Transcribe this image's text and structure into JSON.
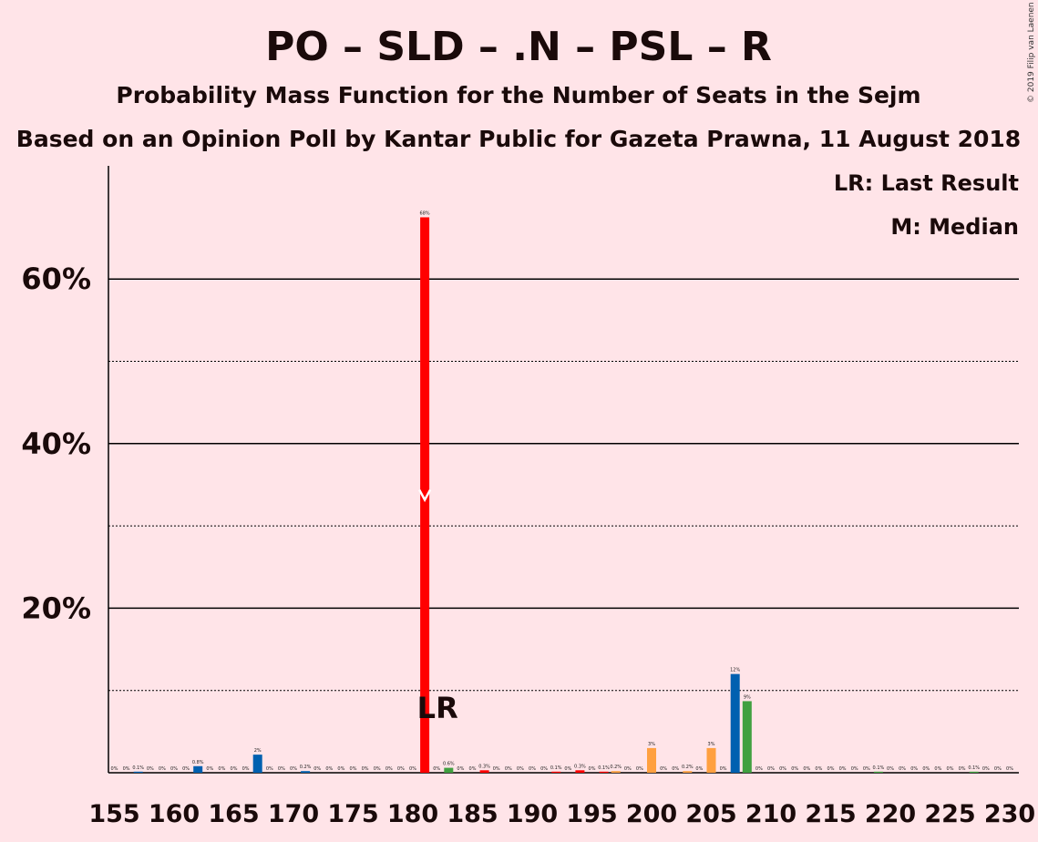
{
  "chart_data": {
    "type": "bar",
    "title": "PO – SLD – .N – PSL – R",
    "subtitle": "Probability Mass Function for the Number of Seats in the Sejm",
    "subtitle2": "Based on an Opinion Poll by Kantar Public for Gazeta Prawna, 11 August 2018",
    "copyright": "© 2019 Filip van Laenen",
    "legend": {
      "lr": "LR: Last Result",
      "m": "M: Median",
      "placement": "top-right"
    },
    "xlim": [
      155,
      230
    ],
    "ylim": [
      0,
      73
    ],
    "yticks": [
      {
        "v": 20,
        "label": "20%"
      },
      {
        "v": 40,
        "label": "40%"
      },
      {
        "v": 60,
        "label": "60%"
      }
    ],
    "ygrid_dotted": [
      10,
      30,
      50
    ],
    "xticks": [
      155,
      160,
      165,
      170,
      175,
      180,
      185,
      190,
      195,
      200,
      205,
      210,
      215,
      220,
      225,
      230
    ],
    "median_seat": 181,
    "median_marker_value": 33.5,
    "last_result_seat": 182,
    "last_result_label": "LR",
    "colors": {
      "background": "#ffe4e8",
      "red": "#ff0000",
      "blue": "#0060b0",
      "green": "#40a040",
      "orange": "#ffa040",
      "text": "#1a0a0a"
    },
    "bars": [
      {
        "seat": 155,
        "value": 0,
        "label": "0%",
        "color": "blue"
      },
      {
        "seat": 156,
        "value": 0,
        "label": "0%",
        "color": "blue"
      },
      {
        "seat": 157,
        "value": 0.1,
        "label": "0.1%",
        "color": "blue"
      },
      {
        "seat": 158,
        "value": 0,
        "label": "0%",
        "color": "blue"
      },
      {
        "seat": 159,
        "value": 0,
        "label": "0%",
        "color": "blue"
      },
      {
        "seat": 160,
        "value": 0,
        "label": "0%",
        "color": "blue"
      },
      {
        "seat": 161,
        "value": 0,
        "label": "0%",
        "color": "blue"
      },
      {
        "seat": 162,
        "value": 0.8,
        "label": "0.8%",
        "color": "blue"
      },
      {
        "seat": 163,
        "value": 0,
        "label": "0%",
        "color": "blue"
      },
      {
        "seat": 164,
        "value": 0,
        "label": "0%",
        "color": "blue"
      },
      {
        "seat": 165,
        "value": 0,
        "label": "0%",
        "color": "blue"
      },
      {
        "seat": 166,
        "value": 0,
        "label": "0%",
        "color": "blue"
      },
      {
        "seat": 167,
        "value": 2.2,
        "label": "2%",
        "color": "blue"
      },
      {
        "seat": 168,
        "value": 0,
        "label": "0%",
        "color": "blue"
      },
      {
        "seat": 169,
        "value": 0,
        "label": "0%",
        "color": "blue"
      },
      {
        "seat": 170,
        "value": 0,
        "label": "0%",
        "color": "blue"
      },
      {
        "seat": 171,
        "value": 0.2,
        "label": "0.2%",
        "color": "blue"
      },
      {
        "seat": 172,
        "value": 0,
        "label": "0%",
        "color": "blue"
      },
      {
        "seat": 173,
        "value": 0,
        "label": "0%",
        "color": "blue"
      },
      {
        "seat": 174,
        "value": 0,
        "label": "0%",
        "color": "blue"
      },
      {
        "seat": 175,
        "value": 0,
        "label": "0%",
        "color": "blue"
      },
      {
        "seat": 176,
        "value": 0,
        "label": "0%",
        "color": "blue"
      },
      {
        "seat": 177,
        "value": 0,
        "label": "0%",
        "color": "blue"
      },
      {
        "seat": 178,
        "value": 0,
        "label": "0%",
        "color": "blue"
      },
      {
        "seat": 179,
        "value": 0,
        "label": "0%",
        "color": "blue"
      },
      {
        "seat": 180,
        "value": 0,
        "label": "0%",
        "color": "blue"
      },
      {
        "seat": 181,
        "value": 67.5,
        "label": "68%",
        "color": "red"
      },
      {
        "seat": 182,
        "value": 0,
        "label": "0%",
        "color": "green"
      },
      {
        "seat": 183,
        "value": 0.6,
        "label": "0.6%",
        "color": "green"
      },
      {
        "seat": 184,
        "value": 0,
        "label": "0%",
        "color": "green"
      },
      {
        "seat": 185,
        "value": 0,
        "label": "0%",
        "color": "green"
      },
      {
        "seat": 186,
        "value": 0.3,
        "label": "0.3%",
        "color": "red"
      },
      {
        "seat": 187,
        "value": 0,
        "label": "0%",
        "color": "red"
      },
      {
        "seat": 188,
        "value": 0,
        "label": "0%",
        "color": "red"
      },
      {
        "seat": 189,
        "value": 0,
        "label": "0%",
        "color": "red"
      },
      {
        "seat": 190,
        "value": 0,
        "label": "0%",
        "color": "red"
      },
      {
        "seat": 191,
        "value": 0,
        "label": "0%",
        "color": "red"
      },
      {
        "seat": 192,
        "value": 0.1,
        "label": "0.1%",
        "color": "red"
      },
      {
        "seat": 193,
        "value": 0,
        "label": "0%",
        "color": "red"
      },
      {
        "seat": 194,
        "value": 0.3,
        "label": "0.3%",
        "color": "red"
      },
      {
        "seat": 195,
        "value": 0,
        "label": "0%",
        "color": "red"
      },
      {
        "seat": 196,
        "value": 0.1,
        "label": "0.1%",
        "color": "red"
      },
      {
        "seat": 197,
        "value": 0.2,
        "label": "0.2%",
        "color": "orange"
      },
      {
        "seat": 198,
        "value": 0,
        "label": "0%",
        "color": "orange"
      },
      {
        "seat": 199,
        "value": 0,
        "label": "0%",
        "color": "orange"
      },
      {
        "seat": 200,
        "value": 3.0,
        "label": "3%",
        "color": "orange"
      },
      {
        "seat": 201,
        "value": 0,
        "label": "0%",
        "color": "orange"
      },
      {
        "seat": 202,
        "value": 0,
        "label": "0%",
        "color": "orange"
      },
      {
        "seat": 203,
        "value": 0.2,
        "label": "0.2%",
        "color": "orange"
      },
      {
        "seat": 204,
        "value": 0,
        "label": "0%",
        "color": "orange"
      },
      {
        "seat": 205,
        "value": 3.0,
        "label": "3%",
        "color": "orange"
      },
      {
        "seat": 206,
        "value": 0,
        "label": "0%",
        "color": "blue"
      },
      {
        "seat": 207,
        "value": 12.0,
        "label": "12%",
        "color": "blue"
      },
      {
        "seat": 208,
        "value": 8.7,
        "label": "9%",
        "color": "green"
      },
      {
        "seat": 209,
        "value": 0,
        "label": "0%",
        "color": "green"
      },
      {
        "seat": 210,
        "value": 0,
        "label": "0%",
        "color": "green"
      },
      {
        "seat": 211,
        "value": 0,
        "label": "0%",
        "color": "green"
      },
      {
        "seat": 212,
        "value": 0,
        "label": "0%",
        "color": "green"
      },
      {
        "seat": 213,
        "value": 0,
        "label": "0%",
        "color": "green"
      },
      {
        "seat": 214,
        "value": 0,
        "label": "0%",
        "color": "green"
      },
      {
        "seat": 215,
        "value": 0,
        "label": "0%",
        "color": "green"
      },
      {
        "seat": 216,
        "value": 0,
        "label": "0%",
        "color": "green"
      },
      {
        "seat": 217,
        "value": 0,
        "label": "0%",
        "color": "green"
      },
      {
        "seat": 218,
        "value": 0,
        "label": "0%",
        "color": "green"
      },
      {
        "seat": 219,
        "value": 0.1,
        "label": "0.1%",
        "color": "green"
      },
      {
        "seat": 220,
        "value": 0,
        "label": "0%",
        "color": "green"
      },
      {
        "seat": 221,
        "value": 0,
        "label": "0%",
        "color": "green"
      },
      {
        "seat": 222,
        "value": 0,
        "label": "0%",
        "color": "green"
      },
      {
        "seat": 223,
        "value": 0,
        "label": "0%",
        "color": "green"
      },
      {
        "seat": 224,
        "value": 0,
        "label": "0%",
        "color": "green"
      },
      {
        "seat": 225,
        "value": 0,
        "label": "0%",
        "color": "green"
      },
      {
        "seat": 226,
        "value": 0,
        "label": "0%",
        "color": "green"
      },
      {
        "seat": 227,
        "value": 0.1,
        "label": "0.1%",
        "color": "green"
      },
      {
        "seat": 228,
        "value": 0,
        "label": "0%",
        "color": "green"
      },
      {
        "seat": 229,
        "value": 0,
        "label": "0%",
        "color": "green"
      },
      {
        "seat": 230,
        "value": 0,
        "label": "0%",
        "color": "green"
      }
    ]
  }
}
